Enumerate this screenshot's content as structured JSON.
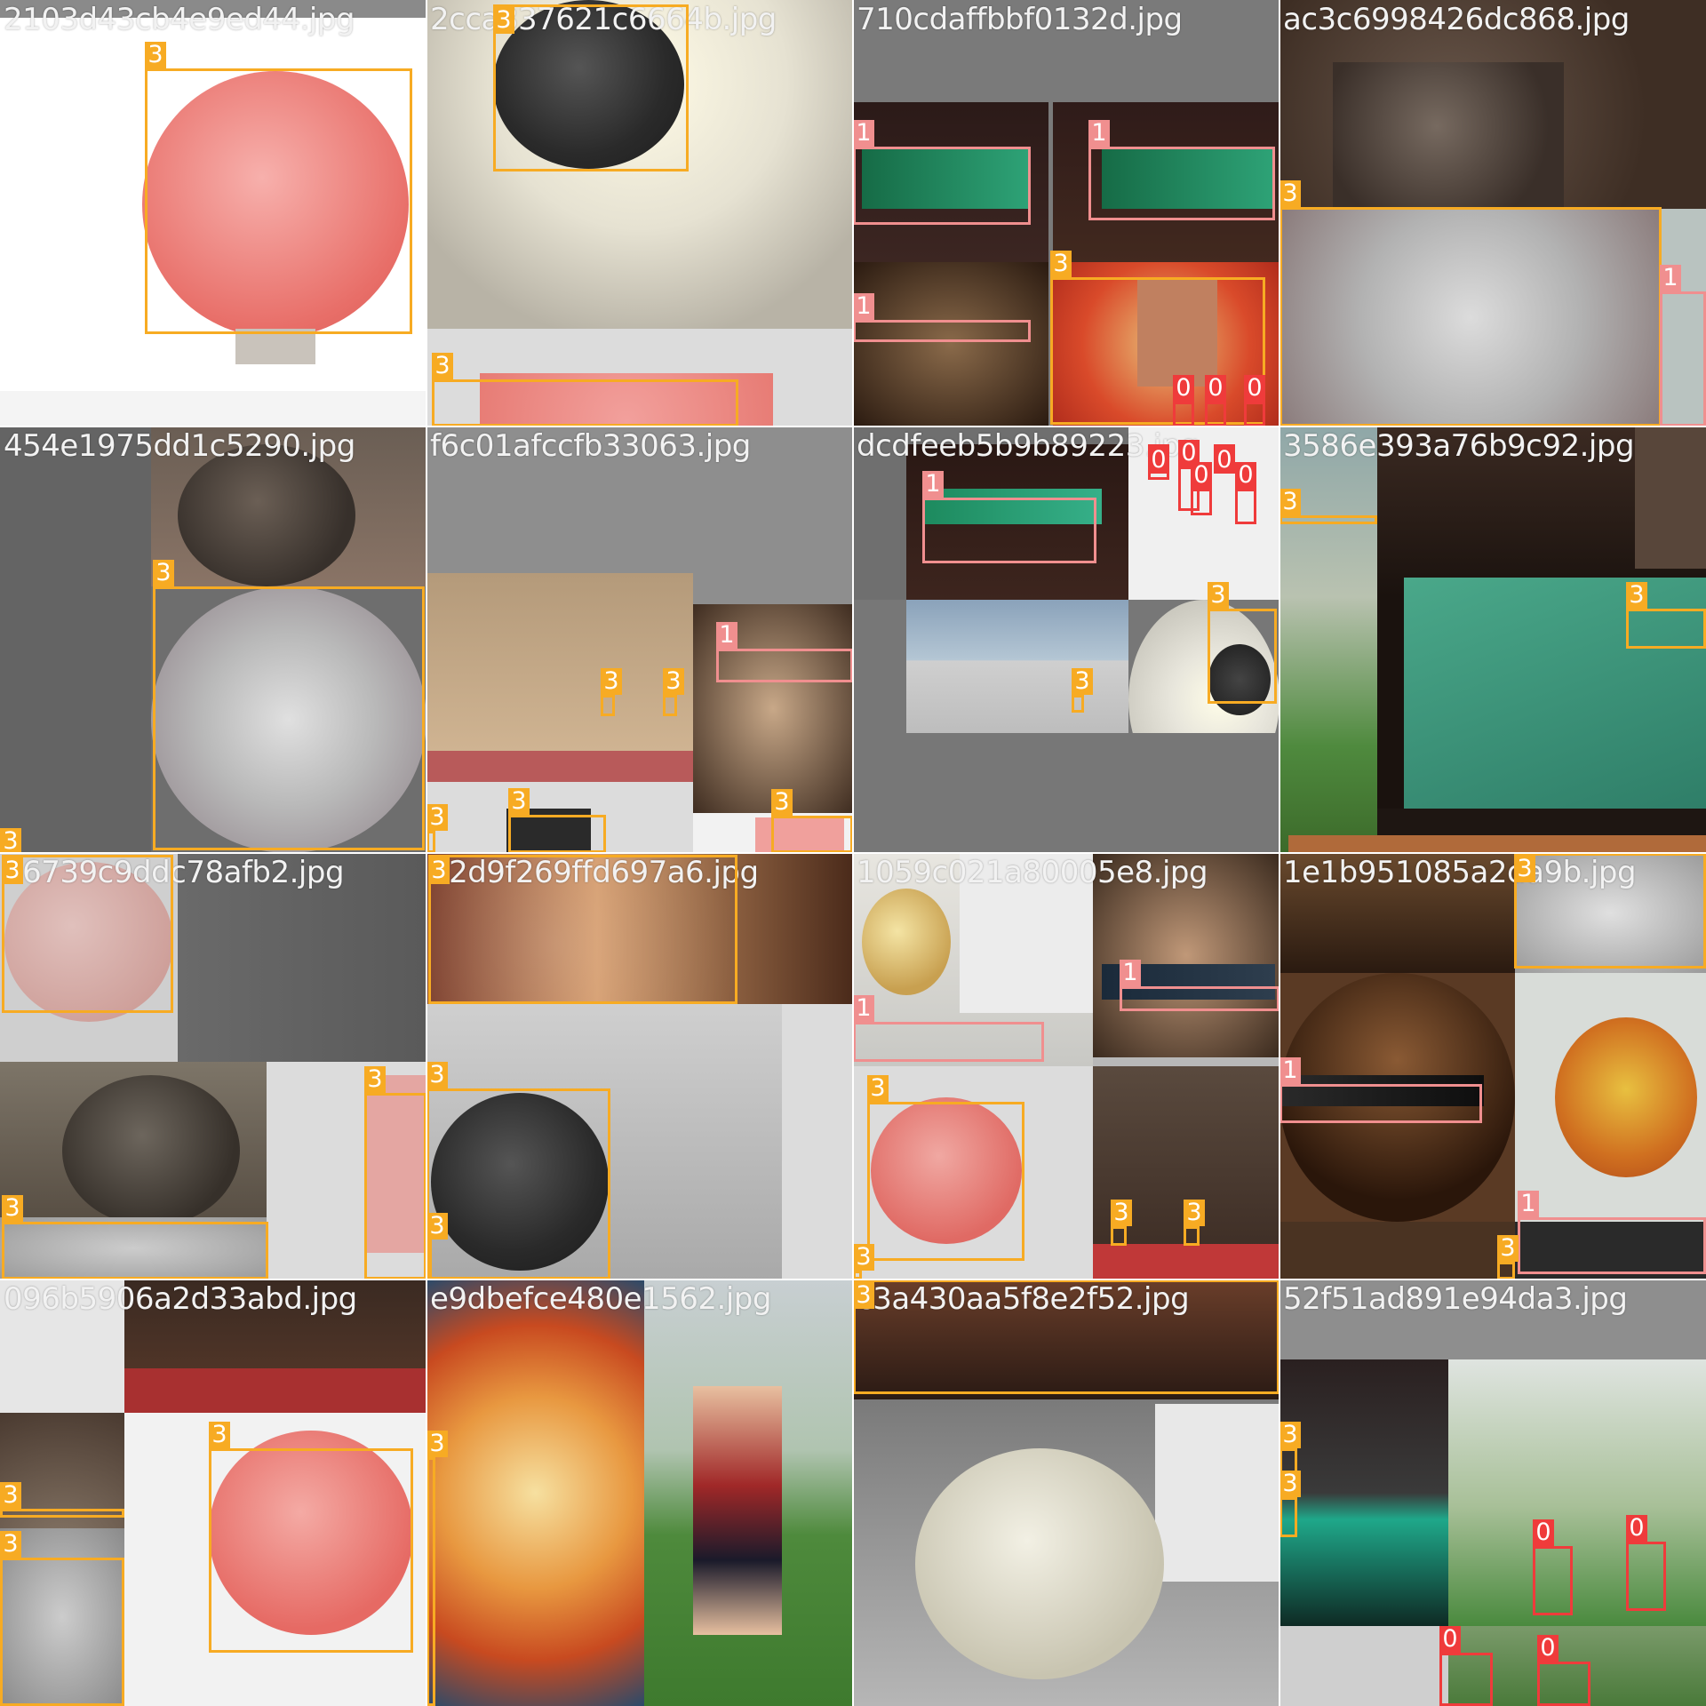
{
  "mosaic": {
    "tiles": [
      {
        "filename": "2103d43cb4e9ed44.jpg",
        "bg": "#ffffff"
      },
      {
        "filename": "2cca337621c6664b.jpg",
        "bg": "#d8d5cb"
      },
      {
        "filename": "710cdaffbbf0132d.jpg",
        "bg": "#7a7a7a"
      },
      {
        "filename": "ac3c6998426dc868.jpg",
        "bg": "#6a5446"
      },
      {
        "filename": "454e1975dd1c5290.jpg",
        "bg": "#6e6e6e"
      },
      {
        "filename": "f6c01afccfb33063.jpg",
        "bg": "#8e8e8e"
      },
      {
        "filename": "dcdfeeb5b9b89223.jpg",
        "bg": "#777777"
      },
      {
        "filename": "3586e393a76b9c92.jpg",
        "bg": "#3a2a22"
      },
      {
        "filename": "76739c9ddc78afb2.jpg",
        "bg": "#cfcfcf"
      },
      {
        "filename": "b2d9f269ffd697a6.jpg",
        "bg": "#c9c9c9"
      },
      {
        "filename": "1059c021a80005e8.jpg",
        "bg": "#b8b8b8"
      },
      {
        "filename": "1e1b951085a2da9b.jpg",
        "bg": "#5a3a24"
      },
      {
        "filename": "096b5906a2d33abd.jpg",
        "bg": "#e6e6e6"
      },
      {
        "filename": "e9dbefce480e1562.jpg",
        "bg": "#9aa08a"
      },
      {
        "filename": "c3a430aa5f8e2f52.jpg",
        "bg": "#9c9c9c"
      },
      {
        "filename": "52f51ad891e94da3.jpg",
        "bg": "#9aa59a"
      }
    ]
  },
  "colors": {
    "class_0": "#ef3b3b",
    "class_1": "#f08f8f",
    "class_3": "#f7ab23",
    "label_text": "#ffffff",
    "filename_text": "#f2f2f2"
  },
  "detections": [
    {
      "tile": 0,
      "class": "3"
    },
    {
      "tile": 1,
      "class": "3"
    },
    {
      "tile": 1,
      "class": "3"
    },
    {
      "tile": 2,
      "class": "1"
    },
    {
      "tile": 2,
      "class": "1"
    },
    {
      "tile": 2,
      "class": "1"
    },
    {
      "tile": 2,
      "class": "3"
    },
    {
      "tile": 2,
      "class": "0"
    },
    {
      "tile": 2,
      "class": "0"
    },
    {
      "tile": 2,
      "class": "0"
    },
    {
      "tile": 3,
      "class": "3"
    },
    {
      "tile": 3,
      "class": "1"
    },
    {
      "tile": 4,
      "class": "3"
    },
    {
      "tile": 4,
      "class": "3"
    },
    {
      "tile": 5,
      "class": "1"
    },
    {
      "tile": 5,
      "class": "3"
    },
    {
      "tile": 5,
      "class": "3"
    },
    {
      "tile": 5,
      "class": "3"
    },
    {
      "tile": 5,
      "class": "3"
    },
    {
      "tile": 5,
      "class": "3"
    },
    {
      "tile": 6,
      "class": "1"
    },
    {
      "tile": 6,
      "class": "3"
    },
    {
      "tile": 6,
      "class": "3"
    },
    {
      "tile": 6,
      "class": "0"
    },
    {
      "tile": 6,
      "class": "0"
    },
    {
      "tile": 6,
      "class": "0"
    },
    {
      "tile": 6,
      "class": "0"
    },
    {
      "tile": 6,
      "class": "0"
    },
    {
      "tile": 7,
      "class": "3"
    },
    {
      "tile": 7,
      "class": "3"
    },
    {
      "tile": 8,
      "class": "3"
    },
    {
      "tile": 8,
      "class": "3"
    },
    {
      "tile": 8,
      "class": "3"
    },
    {
      "tile": 9,
      "class": "3"
    },
    {
      "tile": 9,
      "class": "3"
    },
    {
      "tile": 9,
      "class": "3"
    },
    {
      "tile": 10,
      "class": "1"
    },
    {
      "tile": 10,
      "class": "1"
    },
    {
      "tile": 10,
      "class": "3"
    },
    {
      "tile": 10,
      "class": "3"
    },
    {
      "tile": 10,
      "class": "3"
    },
    {
      "tile": 10,
      "class": "3"
    },
    {
      "tile": 11,
      "class": "3"
    },
    {
      "tile": 11,
      "class": "1"
    },
    {
      "tile": 11,
      "class": "1"
    },
    {
      "tile": 11,
      "class": "3"
    },
    {
      "tile": 12,
      "class": "3"
    },
    {
      "tile": 12,
      "class": "3"
    },
    {
      "tile": 12,
      "class": "3"
    },
    {
      "tile": 13,
      "class": "3"
    },
    {
      "tile": 14,
      "class": "3"
    },
    {
      "tile": 15,
      "class": "3"
    },
    {
      "tile": 15,
      "class": "3"
    },
    {
      "tile": 15,
      "class": "0"
    },
    {
      "tile": 15,
      "class": "0"
    },
    {
      "tile": 15,
      "class": "0"
    },
    {
      "tile": 15,
      "class": "0"
    }
  ]
}
